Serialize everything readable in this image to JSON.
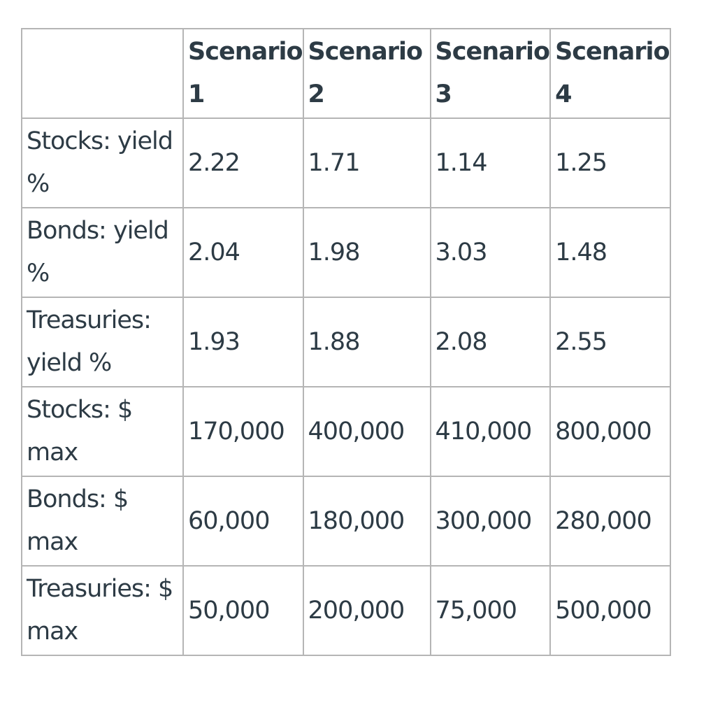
{
  "table": {
    "corner": "",
    "headers": [
      "Scenario 1",
      "Scenario 2",
      "Scenario 3",
      "Scenario 4"
    ],
    "rows": [
      {
        "label": "Stocks: yield %",
        "values": [
          "2.22",
          "1.71",
          "1.14",
          "1.25"
        ]
      },
      {
        "label": "Bonds: yield %",
        "values": [
          "2.04",
          "1.98",
          "3.03",
          "1.48"
        ]
      },
      {
        "label": "Treasuries: yield %",
        "values": [
          "1.93",
          "1.88",
          "2.08",
          "2.55"
        ]
      },
      {
        "label": "Stocks: $ max",
        "values": [
          "170,000",
          "400,000",
          "410,000",
          "800,000"
        ]
      },
      {
        "label": "Bonds: $ max",
        "values": [
          "60,000",
          "180,000",
          "300,000",
          "280,000"
        ]
      },
      {
        "label": "Treasuries: $ max",
        "values": [
          "50,000",
          "200,000",
          "75,000",
          "500,000"
        ]
      }
    ]
  }
}
